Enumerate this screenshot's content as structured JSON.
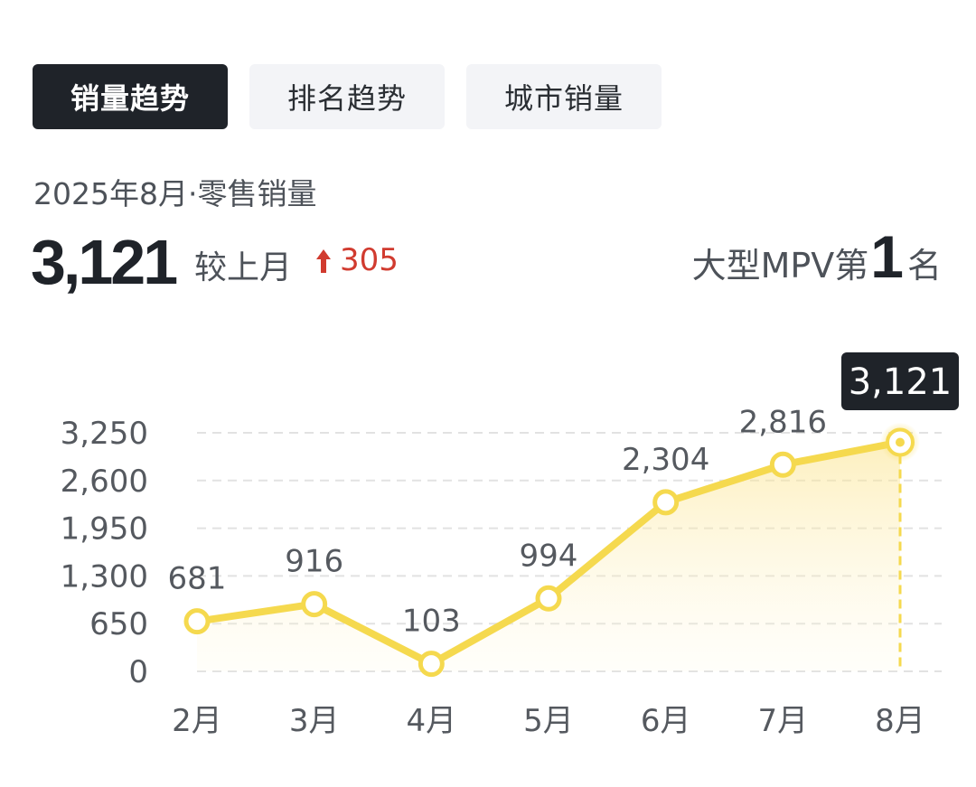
{
  "tabs": [
    {
      "label": "销量趋势",
      "active": true
    },
    {
      "label": "排名趋势",
      "active": false
    },
    {
      "label": "城市销量",
      "active": false
    }
  ],
  "summary": {
    "period_label": "2025年8月·零售销量",
    "value": "3,121",
    "compare_label": "较上月",
    "compare_delta": "305",
    "rank_prefix": "大型MPV第",
    "rank_number": "1",
    "rank_suffix": "名"
  },
  "colors": {
    "line": "#f5d94e",
    "grid": "#e2e2e2",
    "tooltip_bg": "#1f2329",
    "delta_up": "#d13b2f",
    "tab_active_bg": "#1f2329",
    "tab_inactive_bg": "#f3f4f7"
  },
  "chart_data": {
    "type": "area",
    "categories": [
      "2月",
      "3月",
      "4月",
      "5月",
      "6月",
      "7月",
      "8月"
    ],
    "series": [
      {
        "values": [
          681,
          916,
          103,
          994,
          2304,
          2816,
          3121
        ]
      }
    ],
    "data_labels": [
      "681",
      "916",
      "103",
      "994",
      "2,304",
      "2,816",
      "3,121"
    ],
    "y_ticks": [
      0,
      650,
      1300,
      1950,
      2600,
      3250
    ],
    "y_tick_labels": [
      "0",
      "650",
      "1,300",
      "1,950",
      "2,600",
      "3,250"
    ],
    "ylim": [
      0,
      3250
    ],
    "grid": true,
    "highlight_index": 6,
    "tooltip_label": "3,121"
  }
}
